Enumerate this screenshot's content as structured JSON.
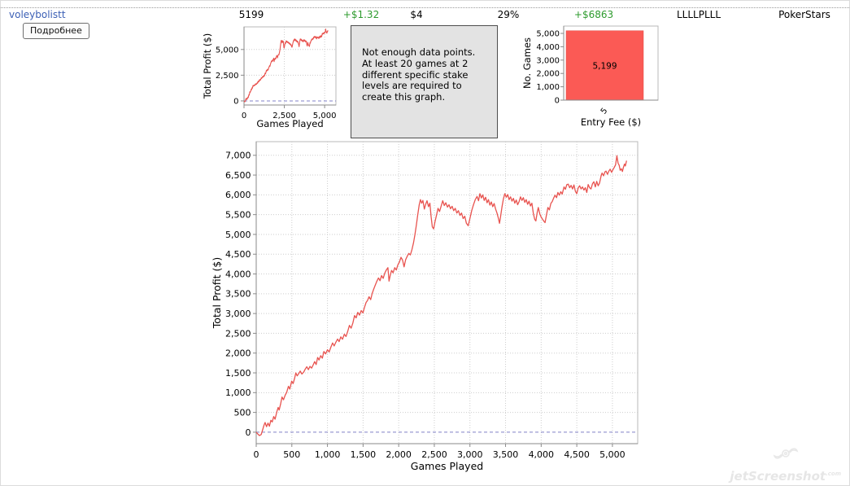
{
  "header": {
    "player": "voleybolistt",
    "games": "5199",
    "avg_profit": "+$1.32",
    "avg_stake": "$4",
    "roi": "29%",
    "total_profit": "+$6863",
    "form": "LLLLPLLL",
    "network": "PokerStars",
    "details_button": "Подробнее"
  },
  "message_box": {
    "text": "Not enough data points. At least 20 games at 2 different specific stake levels are required to create this graph."
  },
  "watermark": {
    "text": "jetScreenshot",
    "suffix": ".com"
  },
  "colors": {
    "profit_green": "#2e9b2e",
    "link_blue": "#3b5fb5",
    "line_red": "#e8534f",
    "bar_red": "#fb5a55",
    "message_bg": "#e3e3e3",
    "zero_line_blue": "#8181c8",
    "grid_gray": "#cdcdcd"
  },
  "profit_curve": {
    "name": "Total Profit ($) vs Games Played",
    "points": [
      [
        0,
        0
      ],
      [
        20,
        -40
      ],
      [
        45,
        -85
      ],
      [
        70,
        -60
      ],
      [
        90,
        60
      ],
      [
        110,
        180
      ],
      [
        125,
        245
      ],
      [
        145,
        140
      ],
      [
        165,
        230
      ],
      [
        185,
        150
      ],
      [
        205,
        300
      ],
      [
        225,
        260
      ],
      [
        245,
        395
      ],
      [
        265,
        330
      ],
      [
        290,
        520
      ],
      [
        308,
        625
      ],
      [
        322,
        560
      ],
      [
        342,
        715
      ],
      [
        362,
        890
      ],
      [
        382,
        820
      ],
      [
        405,
        930
      ],
      [
        428,
        1010
      ],
      [
        452,
        1160
      ],
      [
        472,
        1090
      ],
      [
        498,
        1290
      ],
      [
        518,
        1230
      ],
      [
        538,
        1355
      ],
      [
        556,
        1500
      ],
      [
        576,
        1425
      ],
      [
        598,
        1485
      ],
      [
        618,
        1545
      ],
      [
        642,
        1470
      ],
      [
        668,
        1525
      ],
      [
        690,
        1600
      ],
      [
        710,
        1655
      ],
      [
        732,
        1580
      ],
      [
        755,
        1665
      ],
      [
        778,
        1620
      ],
      [
        800,
        1705
      ],
      [
        820,
        1785
      ],
      [
        842,
        1710
      ],
      [
        862,
        1890
      ],
      [
        882,
        1825
      ],
      [
        905,
        1935
      ],
      [
        928,
        1870
      ],
      [
        950,
        2040
      ],
      [
        974,
        1980
      ],
      [
        1000,
        2085
      ],
      [
        1024,
        2030
      ],
      [
        1048,
        2150
      ],
      [
        1072,
        2255
      ],
      [
        1094,
        2180
      ],
      [
        1118,
        2275
      ],
      [
        1142,
        2355
      ],
      [
        1164,
        2290
      ],
      [
        1188,
        2410
      ],
      [
        1212,
        2350
      ],
      [
        1236,
        2475
      ],
      [
        1260,
        2420
      ],
      [
        1284,
        2550
      ],
      [
        1308,
        2700
      ],
      [
        1332,
        2630
      ],
      [
        1356,
        2760
      ],
      [
        1380,
        2950
      ],
      [
        1402,
        2890
      ],
      [
        1426,
        3030
      ],
      [
        1450,
        2960
      ],
      [
        1474,
        3075
      ],
      [
        1498,
        3015
      ],
      [
        1520,
        3155
      ],
      [
        1542,
        3280
      ],
      [
        1562,
        3330
      ],
      [
        1584,
        3425
      ],
      [
        1606,
        3350
      ],
      [
        1628,
        3510
      ],
      [
        1650,
        3620
      ],
      [
        1672,
        3720
      ],
      [
        1694,
        3820
      ],
      [
        1716,
        3900
      ],
      [
        1738,
        3830
      ],
      [
        1760,
        3960
      ],
      [
        1782,
        3890
      ],
      [
        1804,
        4020
      ],
      [
        1826,
        4100
      ],
      [
        1848,
        4160
      ],
      [
        1864,
        3820
      ],
      [
        1880,
        3960
      ],
      [
        1900,
        4090
      ],
      [
        1922,
        4030
      ],
      [
        1944,
        4160
      ],
      [
        1966,
        4100
      ],
      [
        1988,
        4230
      ],
      [
        2010,
        4300
      ],
      [
        2032,
        4420
      ],
      [
        2054,
        4350
      ],
      [
        2076,
        4180
      ],
      [
        2098,
        4360
      ],
      [
        2120,
        4450
      ],
      [
        2142,
        4520
      ],
      [
        2164,
        4480
      ],
      [
        2186,
        4620
      ],
      [
        2208,
        4790
      ],
      [
        2228,
        4990
      ],
      [
        2248,
        5240
      ],
      [
        2268,
        5500
      ],
      [
        2288,
        5750
      ],
      [
        2305,
        5880
      ],
      [
        2322,
        5790
      ],
      [
        2340,
        5860
      ],
      [
        2360,
        5640
      ],
      [
        2378,
        5760
      ],
      [
        2398,
        5850
      ],
      [
        2418,
        5700
      ],
      [
        2438,
        5790
      ],
      [
        2455,
        5450
      ],
      [
        2472,
        5190
      ],
      [
        2490,
        5140
      ],
      [
        2510,
        5320
      ],
      [
        2530,
        5480
      ],
      [
        2552,
        5660
      ],
      [
        2574,
        5580
      ],
      [
        2596,
        5720
      ],
      [
        2618,
        5850
      ],
      [
        2640,
        5730
      ],
      [
        2662,
        5800
      ],
      [
        2684,
        5690
      ],
      [
        2706,
        5750
      ],
      [
        2728,
        5650
      ],
      [
        2750,
        5710
      ],
      [
        2772,
        5600
      ],
      [
        2794,
        5660
      ],
      [
        2816,
        5540
      ],
      [
        2838,
        5600
      ],
      [
        2860,
        5480
      ],
      [
        2882,
        5540
      ],
      [
        2905,
        5400
      ],
      [
        2928,
        5460
      ],
      [
        2950,
        5280
      ],
      [
        2975,
        5220
      ],
      [
        3000,
        5400
      ],
      [
        3025,
        5600
      ],
      [
        3050,
        5750
      ],
      [
        3075,
        5880
      ],
      [
        3100,
        5960
      ],
      [
        3120,
        5850
      ],
      [
        3140,
        6030
      ],
      [
        3160,
        5920
      ],
      [
        3180,
        6000
      ],
      [
        3200,
        5860
      ],
      [
        3220,
        5940
      ],
      [
        3240,
        5800
      ],
      [
        3260,
        5880
      ],
      [
        3280,
        5740
      ],
      [
        3300,
        5820
      ],
      [
        3320,
        5700
      ],
      [
        3340,
        5780
      ],
      [
        3360,
        5640
      ],
      [
        3380,
        5540
      ],
      [
        3400,
        5400
      ],
      [
        3415,
        5280
      ],
      [
        3430,
        5450
      ],
      [
        3450,
        5700
      ],
      [
        3470,
        5900
      ],
      [
        3490,
        6030
      ],
      [
        3510,
        5940
      ],
      [
        3530,
        6010
      ],
      [
        3550,
        5880
      ],
      [
        3570,
        5950
      ],
      [
        3590,
        5840
      ],
      [
        3610,
        5910
      ],
      [
        3630,
        5790
      ],
      [
        3650,
        5870
      ],
      [
        3670,
        5750
      ],
      [
        3690,
        5830
      ],
      [
        3710,
        5950
      ],
      [
        3730,
        5860
      ],
      [
        3750,
        5930
      ],
      [
        3770,
        5810
      ],
      [
        3790,
        5880
      ],
      [
        3810,
        5760
      ],
      [
        3830,
        5840
      ],
      [
        3850,
        5720
      ],
      [
        3870,
        5790
      ],
      [
        3890,
        5530
      ],
      [
        3910,
        5380
      ],
      [
        3925,
        5340
      ],
      [
        3945,
        5560
      ],
      [
        3960,
        5680
      ],
      [
        3980,
        5520
      ],
      [
        4000,
        5440
      ],
      [
        4020,
        5380
      ],
      [
        4040,
        5330
      ],
      [
        4055,
        5300
      ],
      [
        4075,
        5500
      ],
      [
        4095,
        5680
      ],
      [
        4115,
        5620
      ],
      [
        4135,
        5780
      ],
      [
        4155,
        5830
      ],
      [
        4175,
        5920
      ],
      [
        4195,
        5990
      ],
      [
        4215,
        5930
      ],
      [
        4235,
        6060
      ],
      [
        4255,
        5990
      ],
      [
        4275,
        6080
      ],
      [
        4295,
        6020
      ],
      [
        4320,
        6200
      ],
      [
        4340,
        6140
      ],
      [
        4360,
        6260
      ],
      [
        4380,
        6270
      ],
      [
        4400,
        6180
      ],
      [
        4420,
        6240
      ],
      [
        4440,
        6150
      ],
      [
        4460,
        6250
      ],
      [
        4480,
        6090
      ],
      [
        4500,
        6030
      ],
      [
        4520,
        6180
      ],
      [
        4540,
        6230
      ],
      [
        4560,
        6150
      ],
      [
        4580,
        6200
      ],
      [
        4600,
        6120
      ],
      [
        4620,
        6180
      ],
      [
        4640,
        6060
      ],
      [
        4660,
        6260
      ],
      [
        4680,
        6180
      ],
      [
        4700,
        6150
      ],
      [
        4720,
        6280
      ],
      [
        4740,
        6330
      ],
      [
        4760,
        6200
      ],
      [
        4780,
        6340
      ],
      [
        4800,
        6230
      ],
      [
        4820,
        6300
      ],
      [
        4840,
        6470
      ],
      [
        4855,
        6550
      ],
      [
        4875,
        6480
      ],
      [
        4895,
        6580
      ],
      [
        4911,
        6600
      ],
      [
        4930,
        6520
      ],
      [
        4950,
        6600
      ],
      [
        4968,
        6650
      ],
      [
        4988,
        6570
      ],
      [
        5008,
        6640
      ],
      [
        5025,
        6690
      ],
      [
        5045,
        6760
      ],
      [
        5063,
        6990
      ],
      [
        5080,
        6800
      ],
      [
        5095,
        6750
      ],
      [
        5110,
        6620
      ],
      [
        5125,
        6660
      ],
      [
        5140,
        6590
      ],
      [
        5155,
        6700
      ],
      [
        5170,
        6780
      ],
      [
        5182,
        6730
      ],
      [
        5199,
        6863
      ]
    ]
  },
  "chart_data": [
    {
      "id": "profit-mini",
      "type": "line",
      "title": "",
      "xlabel": "Games Played",
      "ylabel": "Total Profit ($)",
      "xticks": [
        0,
        2500,
        5000
      ],
      "yticks": [
        0,
        2500,
        5000
      ],
      "xlim": [
        0,
        5700
      ],
      "ylim": [
        -400,
        7200
      ],
      "grid": true,
      "zero_line": true,
      "legend": "none",
      "series_ref": "profit_curve",
      "line_color": "#e8534f"
    },
    {
      "id": "games-by-stake",
      "type": "bar",
      "title": "",
      "xlabel": "Entry Fee ($)",
      "ylabel": "No. Games",
      "categories": [
        "5"
      ],
      "values": [
        5199
      ],
      "value_labels": [
        "5,199"
      ],
      "yticks": [
        0,
        1000,
        2000,
        3000,
        4000,
        5000
      ],
      "ylim": [
        0,
        5550
      ],
      "grid": false,
      "legend": "none",
      "bar_color": "#fb5a55"
    },
    {
      "id": "profit-main",
      "type": "line",
      "title": "",
      "xlabel": "Games Played",
      "ylabel": "Total Profit ($)",
      "xticks": [
        0,
        500,
        1000,
        1500,
        2000,
        2500,
        3000,
        3500,
        4000,
        4500,
        5000
      ],
      "yticks": [
        0,
        500,
        1000,
        1500,
        2000,
        2500,
        3000,
        3500,
        4000,
        4500,
        5000,
        5500,
        6000,
        6500,
        7000
      ],
      "xlim": [
        0,
        5355
      ],
      "ylim": [
        -290,
        7345
      ],
      "grid": true,
      "zero_line": true,
      "legend": "none",
      "series_ref": "profit_curve",
      "line_color": "#e8534f"
    }
  ]
}
